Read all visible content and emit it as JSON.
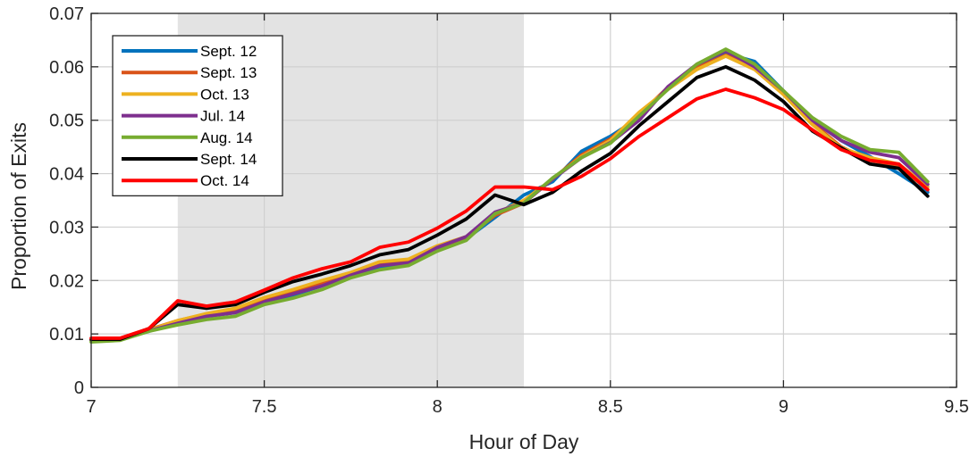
{
  "chart_data": {
    "type": "line",
    "title": "",
    "xlabel": "Hour of Day",
    "ylabel": "Proportion of Exits",
    "xlim": [
      7,
      9.5
    ],
    "ylim": [
      0,
      0.07
    ],
    "x_ticks": [
      7,
      7.5,
      8,
      8.5,
      9,
      9.5
    ],
    "x_tick_labels": [
      "7",
      "7.5",
      "8",
      "8.5",
      "9",
      "9.5"
    ],
    "y_ticks": [
      0,
      0.01,
      0.02,
      0.03,
      0.04,
      0.05,
      0.06,
      0.07
    ],
    "y_tick_labels": [
      "0",
      "0.01",
      "0.02",
      "0.03",
      "0.04",
      "0.05",
      "0.06",
      "0.07"
    ],
    "grid": true,
    "legend_position": "top-left",
    "shaded_region": {
      "x_start": 7.25,
      "x_end": 8.25,
      "color": "#e3e3e3"
    },
    "x": [
      7.0,
      7.0833,
      7.1667,
      7.25,
      7.3333,
      7.4167,
      7.5,
      7.5833,
      7.6667,
      7.75,
      7.8333,
      7.9167,
      8.0,
      8.0833,
      8.1667,
      8.25,
      8.3333,
      8.4167,
      8.5,
      8.5833,
      8.6667,
      8.75,
      8.8333,
      8.9167,
      9.0,
      9.0833,
      9.1667,
      9.25,
      9.3333,
      9.4167
    ],
    "series": [
      {
        "name": "Sept. 12",
        "color": "#0072BD",
        "values": [
          0.0088,
          0.009,
          0.0105,
          0.0122,
          0.0133,
          0.014,
          0.016,
          0.0173,
          0.019,
          0.021,
          0.0225,
          0.0232,
          0.0258,
          0.0278,
          0.0318,
          0.036,
          0.0385,
          0.0442,
          0.047,
          0.0505,
          0.056,
          0.0598,
          0.0625,
          0.061,
          0.0555,
          0.05,
          0.0462,
          0.0432,
          0.04,
          0.0365
        ]
      },
      {
        "name": "Sept. 13",
        "color": "#D95319",
        "values": [
          0.0088,
          0.009,
          0.0108,
          0.0125,
          0.0137,
          0.0145,
          0.0165,
          0.018,
          0.0196,
          0.0213,
          0.023,
          0.0235,
          0.0262,
          0.028,
          0.0322,
          0.0345,
          0.039,
          0.0435,
          0.0465,
          0.051,
          0.0562,
          0.0598,
          0.0622,
          0.0598,
          0.0552,
          0.0495,
          0.045,
          0.0425,
          0.0415,
          0.037
        ]
      },
      {
        "name": "Oct. 13",
        "color": "#EDB120",
        "values": [
          0.0088,
          0.009,
          0.0107,
          0.0125,
          0.0138,
          0.0148,
          0.0168,
          0.0183,
          0.02,
          0.0215,
          0.0235,
          0.024,
          0.0265,
          0.0282,
          0.0325,
          0.035,
          0.039,
          0.0432,
          0.0462,
          0.0515,
          0.0558,
          0.0595,
          0.062,
          0.0595,
          0.0548,
          0.0492,
          0.0448,
          0.043,
          0.0418,
          0.0375
        ]
      },
      {
        "name": "Jul. 14",
        "color": "#7E2F8E",
        "values": [
          0.0088,
          0.009,
          0.0106,
          0.012,
          0.0133,
          0.014,
          0.016,
          0.0175,
          0.019,
          0.021,
          0.0228,
          0.0233,
          0.0262,
          0.0282,
          0.0328,
          0.0345,
          0.039,
          0.043,
          0.0458,
          0.05,
          0.0563,
          0.0605,
          0.063,
          0.06,
          0.0555,
          0.05,
          0.0462,
          0.044,
          0.043,
          0.038
        ]
      },
      {
        "name": "Aug. 14",
        "color": "#77AC30",
        "values": [
          0.0085,
          0.0088,
          0.0105,
          0.0117,
          0.0127,
          0.0133,
          0.0155,
          0.0167,
          0.0183,
          0.0205,
          0.022,
          0.0228,
          0.0255,
          0.0275,
          0.0325,
          0.0345,
          0.0392,
          0.043,
          0.0457,
          0.0508,
          0.0558,
          0.0605,
          0.0633,
          0.0605,
          0.0555,
          0.0505,
          0.047,
          0.0445,
          0.044,
          0.0385
        ]
      },
      {
        "name": "Sept. 14",
        "color": "#000000",
        "values": [
          0.009,
          0.009,
          0.011,
          0.0155,
          0.0148,
          0.0155,
          0.0178,
          0.0198,
          0.0212,
          0.0228,
          0.0248,
          0.0258,
          0.0285,
          0.0315,
          0.036,
          0.0342,
          0.0365,
          0.0405,
          0.0438,
          0.049,
          0.0535,
          0.058,
          0.06,
          0.0575,
          0.0535,
          0.048,
          0.0448,
          0.0418,
          0.041,
          0.0358
        ]
      },
      {
        "name": "Oct. 14",
        "color": "#FF0000",
        "values": [
          0.0092,
          0.0092,
          0.011,
          0.0162,
          0.0152,
          0.016,
          0.0182,
          0.0205,
          0.0222,
          0.0235,
          0.0262,
          0.0272,
          0.0298,
          0.033,
          0.0375,
          0.0375,
          0.037,
          0.0395,
          0.0428,
          0.047,
          0.0505,
          0.054,
          0.0558,
          0.0542,
          0.052,
          0.0482,
          0.0445,
          0.0425,
          0.0418,
          0.037
        ]
      }
    ]
  }
}
